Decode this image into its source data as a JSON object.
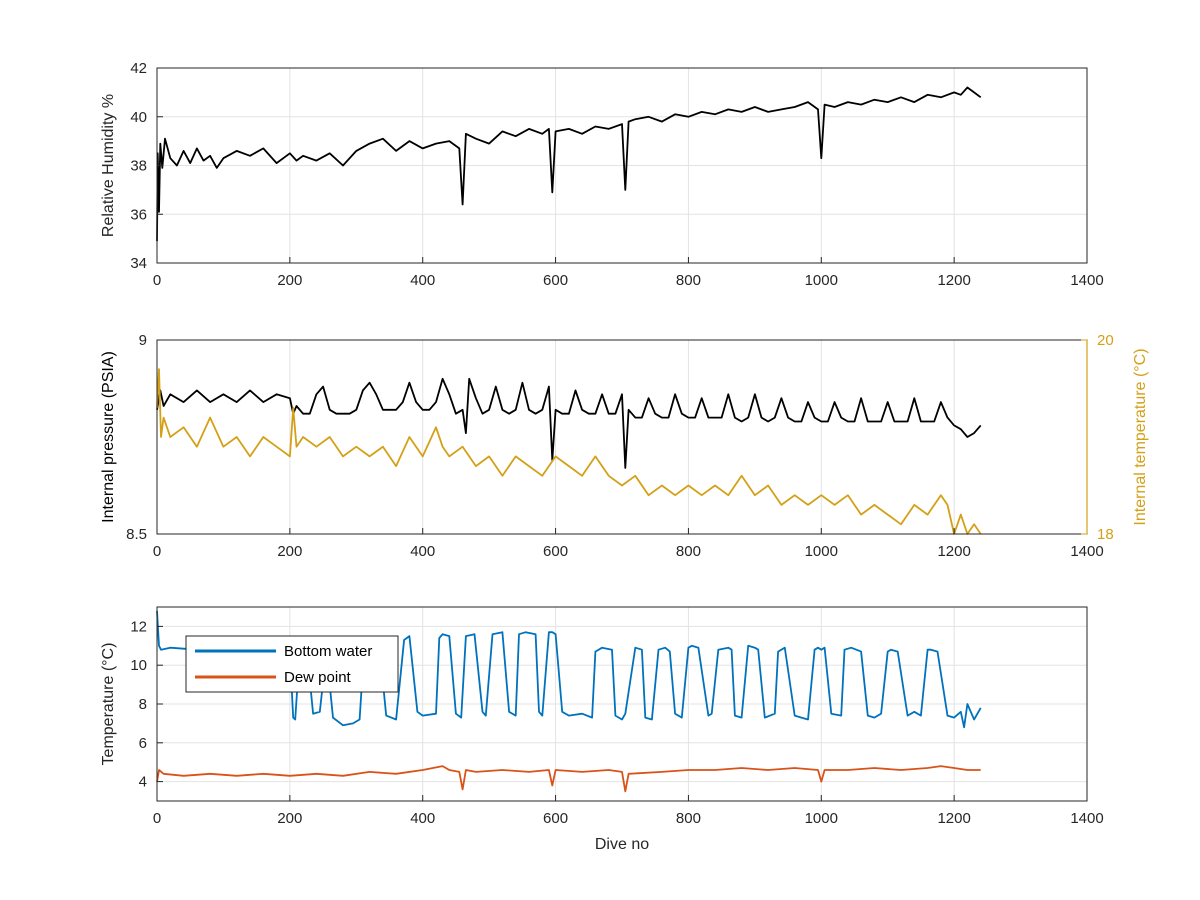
{
  "colors": {
    "black_series": "#000000",
    "internal_temperature": "#D4A017",
    "bottom_water": "#0072BD",
    "dew_point": "#D95319",
    "grid": "#e3e3e3",
    "axis": "#262626"
  },
  "chart_data": [
    {
      "type": "line",
      "xlabel": "",
      "ylabel": "Relative Humidity %",
      "xlim": [
        0,
        1400
      ],
      "ylim": [
        34,
        42
      ],
      "xticks": [
        "0",
        "200",
        "400",
        "600",
        "800",
        "1000",
        "1200",
        "1400"
      ],
      "yticks": [
        "34",
        "36",
        "38",
        "40",
        "42"
      ],
      "grid": true,
      "series": [
        {
          "name": "",
          "color": "#000000",
          "x": [
            0,
            1,
            3,
            5,
            8,
            12,
            20,
            30,
            40,
            50,
            60,
            70,
            80,
            90,
            100,
            120,
            140,
            160,
            180,
            200,
            210,
            220,
            240,
            260,
            280,
            300,
            320,
            340,
            360,
            380,
            400,
            420,
            440,
            455,
            460,
            465,
            480,
            500,
            520,
            540,
            560,
            580,
            590,
            595,
            600,
            620,
            640,
            660,
            680,
            700,
            705,
            710,
            720,
            740,
            760,
            780,
            800,
            820,
            840,
            860,
            880,
            900,
            920,
            940,
            960,
            980,
            995,
            1000,
            1005,
            1020,
            1040,
            1060,
            1080,
            1100,
            1120,
            1140,
            1160,
            1180,
            1200,
            1210,
            1220,
            1230,
            1240
          ],
          "y": [
            34.9,
            38.5,
            36.1,
            38.9,
            37.9,
            39.1,
            38.3,
            38.0,
            38.6,
            38.1,
            38.7,
            38.2,
            38.4,
            37.9,
            38.3,
            38.6,
            38.4,
            38.7,
            38.1,
            38.5,
            38.2,
            38.4,
            38.2,
            38.5,
            38.0,
            38.6,
            38.9,
            39.1,
            38.6,
            39.0,
            38.7,
            38.9,
            39.0,
            38.7,
            36.4,
            39.3,
            39.1,
            38.9,
            39.4,
            39.2,
            39.5,
            39.3,
            39.5,
            36.9,
            39.4,
            39.5,
            39.3,
            39.6,
            39.5,
            39.7,
            37.0,
            39.8,
            39.9,
            40.0,
            39.8,
            40.1,
            40.0,
            40.2,
            40.1,
            40.3,
            40.2,
            40.4,
            40.2,
            40.3,
            40.4,
            40.6,
            40.3,
            38.3,
            40.5,
            40.4,
            40.6,
            40.5,
            40.7,
            40.6,
            40.8,
            40.6,
            40.9,
            40.8,
            41.0,
            40.9,
            41.2,
            41.0,
            40.8
          ]
        }
      ]
    },
    {
      "type": "line",
      "xlabel": "",
      "ylabel": "Internal pressure (PSIA)",
      "ylabel_right": "Internal temperature (°C)",
      "xlim": [
        0,
        1400
      ],
      "ylim": [
        8.5,
        9
      ],
      "ylim_right": [
        18,
        20
      ],
      "xticks": [
        "0",
        "200",
        "400",
        "600",
        "800",
        "1000",
        "1200",
        "1400"
      ],
      "yticks": [
        "8.5",
        "9"
      ],
      "yticks_right": [
        "18",
        "20"
      ],
      "grid": true,
      "series": [
        {
          "name": "",
          "axis": "left",
          "color": "#000000",
          "x": [
            0,
            5,
            10,
            20,
            40,
            60,
            80,
            100,
            120,
            140,
            160,
            180,
            200,
            205,
            210,
            220,
            230,
            240,
            250,
            260,
            270,
            280,
            290,
            300,
            310,
            320,
            330,
            340,
            350,
            360,
            370,
            380,
            390,
            400,
            410,
            420,
            430,
            440,
            450,
            460,
            465,
            470,
            480,
            490,
            500,
            510,
            520,
            530,
            540,
            550,
            560,
            570,
            580,
            590,
            595,
            600,
            610,
            620,
            630,
            640,
            650,
            660,
            670,
            680,
            690,
            700,
            705,
            710,
            720,
            730,
            740,
            750,
            760,
            770,
            780,
            790,
            800,
            810,
            820,
            830,
            840,
            850,
            860,
            870,
            880,
            890,
            900,
            910,
            920,
            930,
            940,
            950,
            960,
            970,
            980,
            990,
            1000,
            1010,
            1020,
            1030,
            1040,
            1050,
            1060,
            1070,
            1080,
            1090,
            1100,
            1110,
            1120,
            1130,
            1140,
            1150,
            1160,
            1170,
            1180,
            1190,
            1200,
            1210,
            1220,
            1230,
            1240
          ],
          "y": [
            8.82,
            8.87,
            8.83,
            8.86,
            8.84,
            8.87,
            8.84,
            8.86,
            8.84,
            8.87,
            8.84,
            8.86,
            8.85,
            8.81,
            8.83,
            8.81,
            8.81,
            8.86,
            8.88,
            8.82,
            8.81,
            8.81,
            8.81,
            8.82,
            8.87,
            8.89,
            8.86,
            8.82,
            8.82,
            8.82,
            8.84,
            8.89,
            8.84,
            8.82,
            8.82,
            8.84,
            8.9,
            8.86,
            8.81,
            8.82,
            8.76,
            8.9,
            8.85,
            8.81,
            8.82,
            8.88,
            8.82,
            8.81,
            8.82,
            8.89,
            8.82,
            8.81,
            8.82,
            8.88,
            8.69,
            8.82,
            8.81,
            8.81,
            8.87,
            8.82,
            8.81,
            8.81,
            8.86,
            8.81,
            8.81,
            8.86,
            8.67,
            8.82,
            8.8,
            8.8,
            8.85,
            8.81,
            8.8,
            8.8,
            8.86,
            8.81,
            8.8,
            8.8,
            8.85,
            8.8,
            8.8,
            8.8,
            8.86,
            8.8,
            8.79,
            8.8,
            8.86,
            8.8,
            8.79,
            8.8,
            8.85,
            8.8,
            8.79,
            8.79,
            8.84,
            8.8,
            8.79,
            8.79,
            8.84,
            8.8,
            8.79,
            8.79,
            8.85,
            8.79,
            8.79,
            8.79,
            8.84,
            8.79,
            8.79,
            8.79,
            8.85,
            8.79,
            8.79,
            8.79,
            8.84,
            8.8,
            8.78,
            8.77,
            8.75,
            8.76,
            8.78
          ]
        },
        {
          "name": "",
          "axis": "right",
          "color": "#D4A017",
          "x": [
            0,
            3,
            6,
            10,
            20,
            40,
            60,
            80,
            100,
            120,
            140,
            160,
            180,
            200,
            205,
            210,
            220,
            240,
            260,
            280,
            300,
            320,
            340,
            360,
            380,
            400,
            420,
            430,
            440,
            460,
            480,
            500,
            520,
            540,
            560,
            580,
            600,
            620,
            640,
            660,
            680,
            700,
            720,
            740,
            760,
            780,
            800,
            820,
            840,
            860,
            880,
            900,
            920,
            940,
            960,
            980,
            1000,
            1020,
            1040,
            1060,
            1080,
            1100,
            1120,
            1140,
            1160,
            1180,
            1190,
            1200,
            1210,
            1220,
            1230,
            1240
          ],
          "y": [
            19.3,
            19.7,
            19.0,
            19.2,
            19.0,
            19.1,
            18.9,
            19.2,
            18.9,
            19.0,
            18.8,
            19.0,
            18.9,
            18.8,
            19.3,
            18.9,
            19.0,
            18.9,
            19.0,
            18.8,
            18.9,
            18.8,
            18.9,
            18.7,
            19.0,
            18.8,
            19.1,
            18.9,
            18.8,
            18.9,
            18.7,
            18.8,
            18.6,
            18.8,
            18.7,
            18.6,
            18.8,
            18.7,
            18.6,
            18.8,
            18.6,
            18.5,
            18.6,
            18.4,
            18.5,
            18.4,
            18.5,
            18.4,
            18.5,
            18.4,
            18.6,
            18.4,
            18.5,
            18.3,
            18.4,
            18.3,
            18.4,
            18.3,
            18.4,
            18.2,
            18.3,
            18.2,
            18.1,
            18.3,
            18.2,
            18.4,
            18.3,
            18.0,
            18.2,
            18.0,
            18.1,
            18.0
          ]
        }
      ]
    },
    {
      "type": "line",
      "xlabel": "Dive no",
      "ylabel": "Temperature (°C)",
      "xlim": [
        0,
        1400
      ],
      "ylim": [
        3,
        13
      ],
      "xticks": [
        "0",
        "200",
        "400",
        "600",
        "800",
        "1000",
        "1200",
        "1400"
      ],
      "yticks": [
        "4",
        "6",
        "8",
        "10",
        "12"
      ],
      "grid": true,
      "legend": "top-left",
      "series": [
        {
          "name": "Bottom water",
          "color": "#0072BD",
          "x": [
            0,
            3,
            6,
            20,
            60,
            100,
            140,
            180,
            200,
            205,
            208,
            215,
            225,
            235,
            245,
            255,
            265,
            280,
            295,
            305,
            312,
            320,
            335,
            345,
            360,
            372,
            380,
            392,
            400,
            420,
            425,
            430,
            440,
            450,
            458,
            465,
            478,
            490,
            495,
            505,
            520,
            530,
            540,
            545,
            555,
            570,
            575,
            580,
            590,
            595,
            600,
            610,
            620,
            640,
            655,
            660,
            670,
            685,
            690,
            700,
            705,
            720,
            730,
            735,
            745,
            755,
            765,
            772,
            780,
            790,
            800,
            805,
            815,
            830,
            835,
            845,
            860,
            865,
            870,
            880,
            890,
            900,
            905,
            915,
            930,
            935,
            945,
            960,
            970,
            980,
            990,
            995,
            1000,
            1005,
            1015,
            1030,
            1035,
            1045,
            1060,
            1070,
            1080,
            1090,
            1100,
            1105,
            1115,
            1130,
            1140,
            1150,
            1160,
            1165,
            1175,
            1190,
            1200,
            1210,
            1215,
            1220,
            1230,
            1240
          ],
          "y": [
            12.8,
            11.0,
            10.8,
            10.9,
            10.8,
            10.8,
            10.8,
            10.7,
            10.6,
            7.3,
            7.2,
            10.8,
            11.0,
            7.5,
            7.6,
            10.7,
            7.3,
            6.9,
            7.0,
            7.2,
            11.0,
            11.2,
            10.9,
            7.4,
            7.2,
            11.3,
            11.5,
            7.6,
            7.4,
            7.5,
            11.4,
            11.6,
            11.5,
            7.5,
            7.3,
            11.5,
            11.6,
            7.6,
            7.4,
            11.6,
            11.7,
            7.6,
            7.4,
            11.6,
            11.7,
            11.6,
            7.6,
            7.4,
            11.7,
            11.7,
            11.6,
            7.6,
            7.4,
            7.5,
            7.3,
            10.7,
            10.9,
            10.8,
            7.4,
            7.2,
            7.5,
            10.9,
            10.8,
            7.3,
            7.2,
            10.8,
            10.9,
            10.7,
            7.5,
            7.3,
            10.9,
            11.0,
            10.9,
            7.4,
            7.5,
            10.8,
            10.9,
            10.8,
            7.4,
            7.3,
            11.0,
            10.9,
            10.8,
            7.3,
            7.5,
            10.7,
            10.9,
            7.4,
            7.3,
            7.2,
            10.8,
            10.9,
            10.8,
            10.9,
            7.5,
            7.4,
            10.8,
            10.9,
            10.7,
            7.4,
            7.3,
            7.5,
            10.7,
            10.8,
            10.7,
            7.4,
            7.6,
            7.4,
            10.8,
            10.8,
            10.7,
            7.4,
            7.3,
            7.6,
            6.8,
            8.0,
            7.2,
            7.8
          ]
        },
        {
          "name": "Dew point",
          "color": "#D95319",
          "x": [
            0,
            3,
            10,
            40,
            80,
            120,
            160,
            200,
            240,
            280,
            320,
            360,
            400,
            430,
            440,
            455,
            460,
            465,
            480,
            520,
            560,
            590,
            595,
            600,
            640,
            680,
            700,
            705,
            710,
            760,
            800,
            840,
            880,
            920,
            960,
            995,
            1000,
            1005,
            1040,
            1080,
            1120,
            1160,
            1180,
            1200,
            1220,
            1240
          ],
          "y": [
            4.0,
            4.6,
            4.4,
            4.3,
            4.4,
            4.3,
            4.4,
            4.3,
            4.4,
            4.3,
            4.5,
            4.4,
            4.6,
            4.8,
            4.6,
            4.5,
            3.6,
            4.6,
            4.5,
            4.6,
            4.5,
            4.6,
            3.8,
            4.6,
            4.5,
            4.6,
            4.5,
            3.5,
            4.4,
            4.5,
            4.6,
            4.6,
            4.7,
            4.6,
            4.7,
            4.6,
            4.0,
            4.6,
            4.6,
            4.7,
            4.6,
            4.7,
            4.8,
            4.7,
            4.6,
            4.6
          ]
        }
      ]
    }
  ]
}
